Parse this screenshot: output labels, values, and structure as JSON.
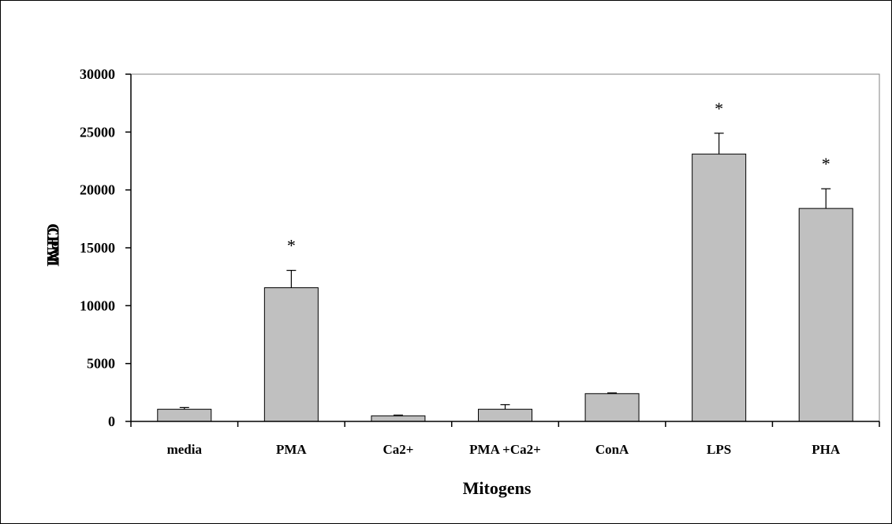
{
  "chart_data": {
    "type": "bar",
    "title": "",
    "xlabel": "Mitogens",
    "ylabel_overlap": [
      "CPM",
      "CPM"
    ],
    "ylim": [
      0,
      30000
    ],
    "yticks": [
      0,
      5000,
      10000,
      15000,
      20000,
      25000,
      30000
    ],
    "categories": [
      "media",
      "PMA",
      "Ca2+",
      "PMA +Ca2+",
      "ConA",
      "LPS",
      "PHA"
    ],
    "series": [
      {
        "values": [
          1050,
          11550,
          480,
          1050,
          2400,
          23100,
          18400
        ],
        "errors": [
          150,
          1500,
          60,
          400,
          60,
          1800,
          1700
        ],
        "significance": [
          "",
          "*",
          "",
          "",
          "",
          "*",
          "*"
        ]
      }
    ],
    "grid": false,
    "legend": "none",
    "colors": {
      "bar_fill": "#c0c0c0",
      "bar_stroke": "#000000",
      "plot_border": "#808080"
    }
  }
}
